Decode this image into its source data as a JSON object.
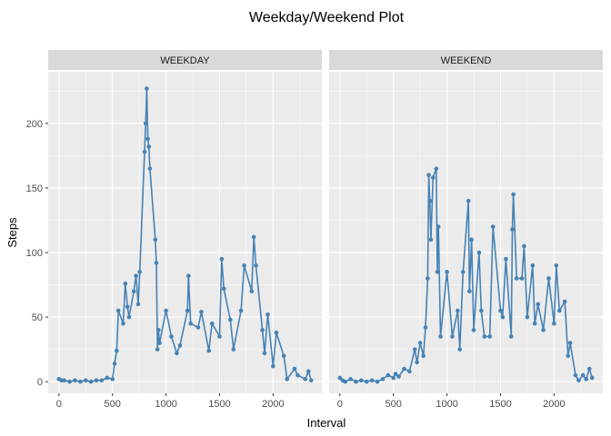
{
  "chart_data": {
    "type": "line",
    "title": "Weekday/Weekend Plot",
    "xlabel": "Interval",
    "ylabel": "Steps",
    "xlim": [
      -100,
      2455
    ],
    "ylim": [
      -9,
      240
    ],
    "xticks": [
      0,
      500,
      1000,
      1500,
      2000
    ],
    "yticks": [
      0,
      50,
      100,
      150,
      200
    ],
    "grid": true,
    "line_color": "#4682B4",
    "panel_background": "#EBEBEB",
    "strip_background": "#D9D9D9",
    "panels": [
      {
        "label": "WEEKDAY",
        "x": [
          0,
          25,
          50,
          100,
          150,
          200,
          250,
          300,
          350,
          400,
          450,
          500,
          520,
          540,
          555,
          600,
          620,
          640,
          655,
          700,
          720,
          740,
          755,
          800,
          810,
          820,
          830,
          840,
          850,
          900,
          910,
          920,
          930,
          940,
          1000,
          1050,
          1100,
          1130,
          1200,
          1210,
          1230,
          1300,
          1330,
          1400,
          1430,
          1500,
          1520,
          1540,
          1600,
          1630,
          1700,
          1730,
          1800,
          1820,
          1840,
          1900,
          1920,
          1950,
          2000,
          2030,
          2100,
          2130,
          2200,
          2230,
          2300,
          2330,
          2355
        ],
        "y": [
          2,
          1,
          1,
          0,
          1,
          0,
          1,
          0,
          1,
          1,
          3,
          2,
          14,
          24,
          55,
          45,
          76,
          58,
          50,
          70,
          82,
          60,
          85,
          178,
          200,
          227,
          188,
          182,
          165,
          110,
          92,
          25,
          40,
          30,
          55,
          35,
          22,
          28,
          55,
          82,
          45,
          42,
          54,
          24,
          45,
          35,
          95,
          72,
          48,
          25,
          55,
          90,
          70,
          112,
          90,
          40,
          22,
          52,
          12,
          38,
          20,
          2,
          10,
          5,
          2,
          8,
          1
        ]
      },
      {
        "label": "WEEKEND",
        "x": [
          0,
          25,
          50,
          100,
          150,
          200,
          250,
          300,
          350,
          400,
          450,
          500,
          520,
          550,
          600,
          650,
          700,
          720,
          750,
          780,
          800,
          820,
          830,
          840,
          850,
          870,
          900,
          910,
          920,
          940,
          1000,
          1050,
          1100,
          1120,
          1150,
          1200,
          1210,
          1230,
          1250,
          1300,
          1320,
          1350,
          1400,
          1430,
          1500,
          1520,
          1550,
          1600,
          1610,
          1620,
          1650,
          1700,
          1720,
          1750,
          1800,
          1820,
          1850,
          1900,
          1950,
          2000,
          2020,
          2050,
          2100,
          2130,
          2150,
          2200,
          2230,
          2270,
          2300,
          2330,
          2355
        ],
        "y": [
          3,
          1,
          0,
          2,
          0,
          1,
          0,
          1,
          0,
          2,
          5,
          3,
          6,
          4,
          10,
          8,
          25,
          15,
          30,
          20,
          42,
          80,
          160,
          140,
          110,
          158,
          165,
          85,
          120,
          35,
          85,
          35,
          55,
          25,
          85,
          140,
          70,
          110,
          40,
          100,
          55,
          35,
          35,
          120,
          55,
          50,
          95,
          35,
          118,
          145,
          80,
          80,
          105,
          50,
          90,
          45,
          60,
          40,
          80,
          45,
          90,
          55,
          62,
          20,
          30,
          5,
          1,
          5,
          2,
          10,
          3
        ]
      }
    ]
  }
}
